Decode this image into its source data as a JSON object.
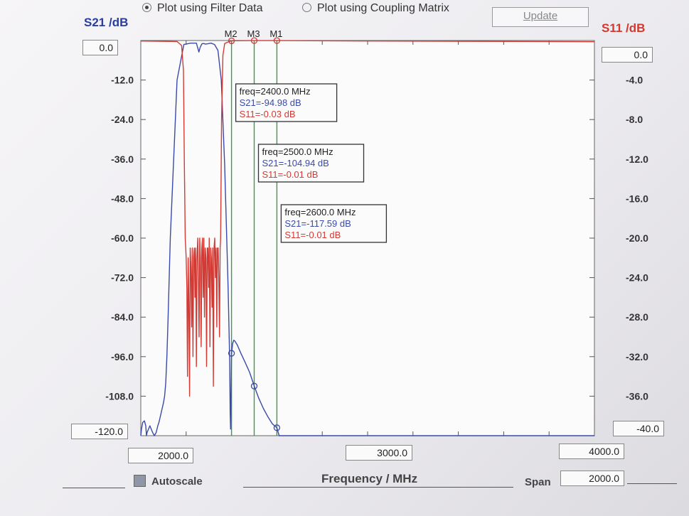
{
  "controls": {
    "option_filter_data": "Plot using Filter Data",
    "option_coupling_matrix": "Plot using Coupling Matrix",
    "update_label": "Update",
    "autoscale_label": "Autoscale",
    "x_axis_label": "Frequency / MHz",
    "span_label": "Span",
    "span_value": "2000.0",
    "x_start": "2000.0",
    "x_center": "3000.0",
    "x_end": "4000.0",
    "left_axis_top": "0.0",
    "left_axis_bottom": "-120.0",
    "right_axis_top": "0.0",
    "right_axis_bottom": "-40.0"
  },
  "colors": {
    "s21": "#3a4aa8",
    "s11": "#d43a34",
    "marker_line": "#3d9a4a"
  },
  "chart_data": {
    "type": "line",
    "xlabel": "Frequency / MHz",
    "ylabel": "S21 /dB",
    "y2label": "S11 /dB",
    "xlim": [
      2000,
      4000
    ],
    "ylim": [
      -120,
      0
    ],
    "y2lim": [
      -40,
      0
    ],
    "left_ticks": [
      "0.0",
      "-12.0",
      "-24.0",
      "-36.0",
      "-48.0",
      "-60.0",
      "-72.0",
      "-84.0",
      "-96.0",
      "-108.0",
      "-120.0"
    ],
    "right_ticks": [
      "0.0",
      "-4.0",
      "-8.0",
      "-12.0",
      "-16.0",
      "-20.0",
      "-24.0",
      "-28.0",
      "-32.0",
      "-36.0",
      "-40.0"
    ],
    "series": [
      {
        "name": "S21",
        "color": "#3a4aa8",
        "x": [
          2000,
          2003,
          2008,
          2016,
          2022,
          2025,
          2028,
          2040,
          2052,
          2060,
          2068,
          2075,
          2080,
          2090,
          2100,
          2105,
          2110,
          2115,
          2120,
          2130,
          2160,
          2190,
          2220,
          2245,
          2250,
          2256,
          2262,
          2270,
          2278,
          2285,
          2295,
          2310,
          2325,
          2340,
          2355,
          2370,
          2385,
          2392,
          2394,
          2396,
          2398,
          2400,
          2405,
          2410,
          2415,
          2425,
          2440,
          2460,
          2480,
          2500,
          2520,
          2540,
          2560,
          2580,
          2600,
          2610,
          2700,
          3000,
          4000
        ],
        "y": [
          -120,
          -118,
          -116,
          -115.5,
          -117,
          -120,
          -119,
          -117,
          -119,
          -120,
          -119,
          -117,
          -116,
          -113,
          -110,
          -108,
          -104,
          -96,
          -85,
          -60,
          -12,
          -1.2,
          -0.8,
          -0.8,
          -2,
          -3.5,
          -2,
          -1,
          -0.9,
          -1.1,
          -1,
          -0.8,
          -1.2,
          -3,
          -12,
          -38,
          -75,
          -97,
          -113,
          -118,
          -105,
          -95,
          -92,
          -91,
          -91.3,
          -92.4,
          -94.8,
          -97.7,
          -100.8,
          -104.9,
          -108.6,
          -111.7,
          -114.2,
          -116.4,
          -117.6,
          -120,
          -120,
          -120,
          -120
        ]
      },
      {
        "name": "S11",
        "color": "#d43a34",
        "x": [
          2000,
          2160,
          2180,
          2188,
          2192,
          2196,
          2198,
          2200,
          2203,
          2206,
          2209,
          2212,
          2215,
          2218,
          2221,
          2224,
          2227,
          2230,
          2233,
          2236,
          2239,
          2242,
          2245,
          2248,
          2251,
          2254,
          2257,
          2260,
          2263,
          2266,
          2269,
          2272,
          2275,
          2278,
          2281,
          2284,
          2287,
          2290,
          2293,
          2296,
          2299,
          2302,
          2305,
          2308,
          2311,
          2314,
          2317,
          2320,
          2323,
          2326,
          2329,
          2332,
          2335,
          2338,
          2341,
          2344,
          2347,
          2350,
          2352,
          2356,
          2362,
          2370,
          2390,
          2400,
          2500,
          2600,
          3000,
          4000
        ],
        "y": [
          -0.05,
          -0.1,
          -0.5,
          -3,
          -12,
          -20,
          -21,
          -22,
          -25,
          -34,
          -22,
          -27,
          -36,
          -21,
          -23,
          -29,
          -21,
          -32,
          -22,
          -21,
          -26,
          -21,
          -33,
          -22,
          -20,
          -24,
          -30,
          -20,
          -22,
          -31,
          -21,
          -20,
          -26,
          -20,
          -28,
          -21,
          -22,
          -33,
          -21,
          -21,
          -25,
          -20,
          -31,
          -21,
          -22,
          -27,
          -21,
          -35,
          -21,
          -20,
          -24,
          -21,
          -29,
          -21,
          -21,
          -24,
          -30,
          -21,
          -20,
          -8,
          -1.5,
          -0.3,
          -0.1,
          -0.03,
          -0.01,
          -0.01,
          -0.05,
          -0.12
        ]
      }
    ],
    "markers": [
      {
        "label": "M1",
        "freq": 2600,
        "line1": "freq=2600.0 MHz",
        "line2": "S21=-117.59 dB",
        "line3": "S11=-0.01 dB"
      },
      {
        "label": "M2",
        "freq": 2400,
        "line1": "freq=2400.0 MHz",
        "line2": "S21=-94.98 dB",
        "line3": "S11=-0.03 dB"
      },
      {
        "label": "M3",
        "freq": 2500,
        "line1": "freq=2500.0 MHz",
        "line2": "S21=-104.94 dB",
        "line3": "S11=-0.01 dB"
      }
    ]
  }
}
